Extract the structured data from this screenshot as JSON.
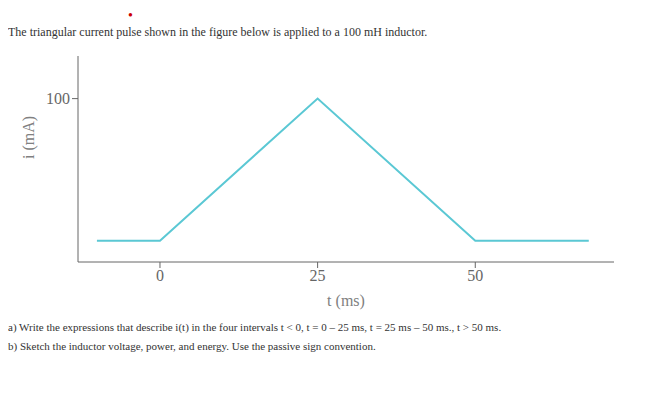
{
  "chart_data": {
    "type": "line",
    "title": "The triangular current pulse shown in the figure below is applied to a 100 mH inductor.",
    "annotations": [
      {
        "text": "•",
        "color": "#cc0000"
      },
      {
        "text": "a) Write the expressions that describe i(t) in the four intervals t < 0, t = 0 – 25 ms, t = 25 ms – 50 ms., t > 50 ms."
      },
      {
        "text": "b) Sketch the inductor voltage, power, and energy. Use the passive sign convention."
      }
    ],
    "x": [
      -10,
      0,
      25,
      50,
      68
    ],
    "values": [
      0,
      0,
      100,
      0,
      0
    ],
    "color": "#5bc8d4",
    "xlabel": "t (ms)",
    "ylabel": "i (mA)",
    "xlim": [
      -13,
      72
    ],
    "ylim": [
      -15,
      130
    ],
    "xticks": [
      0,
      25,
      50
    ],
    "yticks": [
      100
    ],
    "grid": false
  }
}
